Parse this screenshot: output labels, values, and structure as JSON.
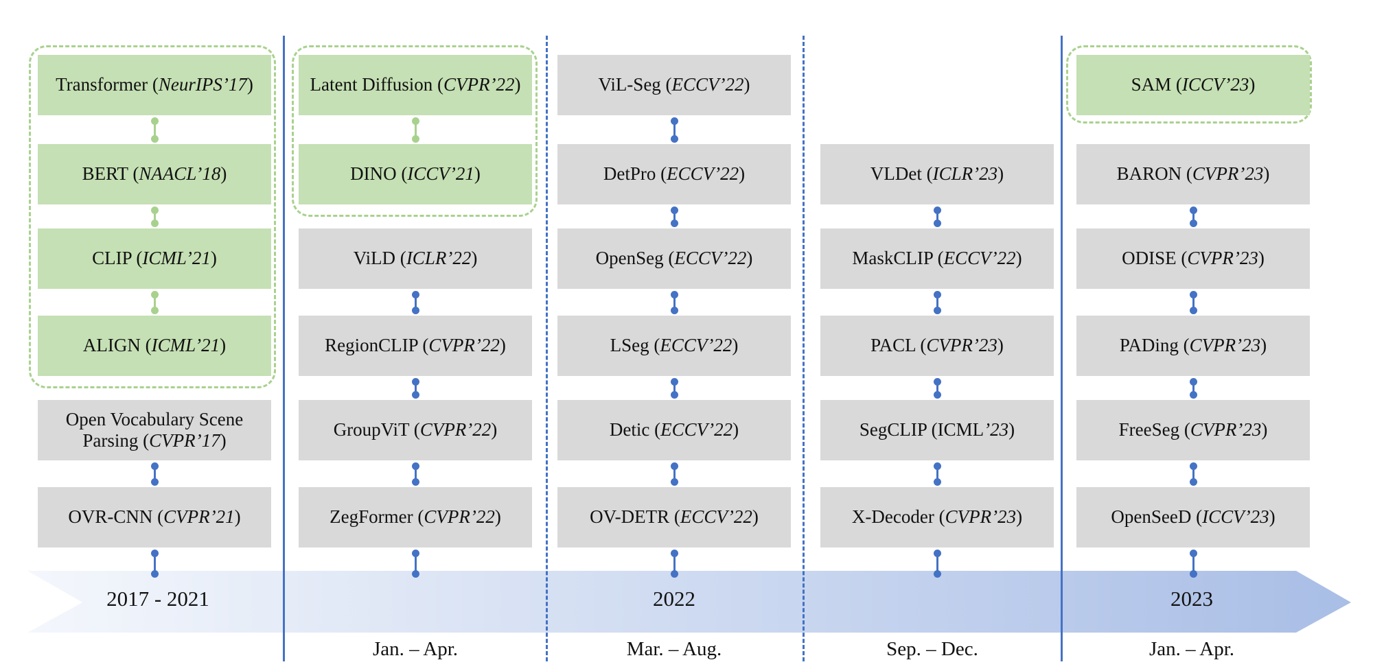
{
  "colors": {
    "gray_box": "#d9d9d9",
    "green_box": "#c5e0b4",
    "green_border": "#a9d18e",
    "blue": "#4472c4"
  },
  "timeline": {
    "years": [
      "2017 - 2021",
      "2022",
      "2023"
    ],
    "periods": [
      "Jan. – Apr.",
      "Mar. – Aug.",
      "Sep. – Dec.",
      "Jan. – Apr."
    ]
  },
  "columns": {
    "col1": [
      {
        "name": "Transformer",
        "venue": "NeurIPS’17"
      },
      {
        "name": "BERT",
        "venue": "NAACL’18"
      },
      {
        "name": "CLIP",
        "venue": "ICML’21"
      },
      {
        "name": "ALIGN",
        "venue": "ICML’21"
      },
      {
        "name": "Open Vocabulary Scene Parsing",
        "venue": "CVPR’17"
      },
      {
        "name": "OVR-CNN",
        "venue": "CVPR’21"
      }
    ],
    "col2": [
      {
        "name": "Latent Diffusion",
        "venue": "CVPR’22"
      },
      {
        "name": "DINO",
        "venue": "ICCV’21"
      },
      {
        "name": "ViLD",
        "venue": "ICLR’22"
      },
      {
        "name": "RegionCLIP",
        "venue": "CVPR’22"
      },
      {
        "name": "GroupViT",
        "venue": "CVPR’22"
      },
      {
        "name": "ZegFormer",
        "venue": "CVPR’22"
      }
    ],
    "col3": [
      {
        "name": "ViL-Seg",
        "venue": "ECCV’22"
      },
      {
        "name": "DetPro",
        "venue": "ECCV’22"
      },
      {
        "name": "OpenSeg",
        "venue": "ECCV’22"
      },
      {
        "name": "LSeg",
        "venue": "ECCV’22"
      },
      {
        "name": "Detic",
        "venue": "ECCV’22"
      },
      {
        "name": "OV-DETR",
        "venue": "ECCV’22"
      }
    ],
    "col4": [
      {
        "name": "VLDet",
        "venue": "ICLR’23"
      },
      {
        "name": "MaskCLIP",
        "venue": "ECCV’22"
      },
      {
        "name": "PACL",
        "venue": "CVPR’23"
      },
      {
        "name": "SegCLIP",
        "venue_prefix": "ICML",
        "venue": "’23"
      },
      {
        "name": "X-Decoder",
        "venue": "CVPR’23"
      }
    ],
    "col5": [
      {
        "name": "SAM",
        "venue": "ICCV’23"
      },
      {
        "name": "BARON",
        "venue": "CVPR’23"
      },
      {
        "name": "ODISE",
        "venue": "CVPR’23"
      },
      {
        "name": "PADing",
        "venue": "CVPR’23"
      },
      {
        "name": "FreeSeg",
        "venue": "CVPR’23"
      },
      {
        "name": "OpenSeeD",
        "venue": "ICCV’23"
      }
    ]
  }
}
